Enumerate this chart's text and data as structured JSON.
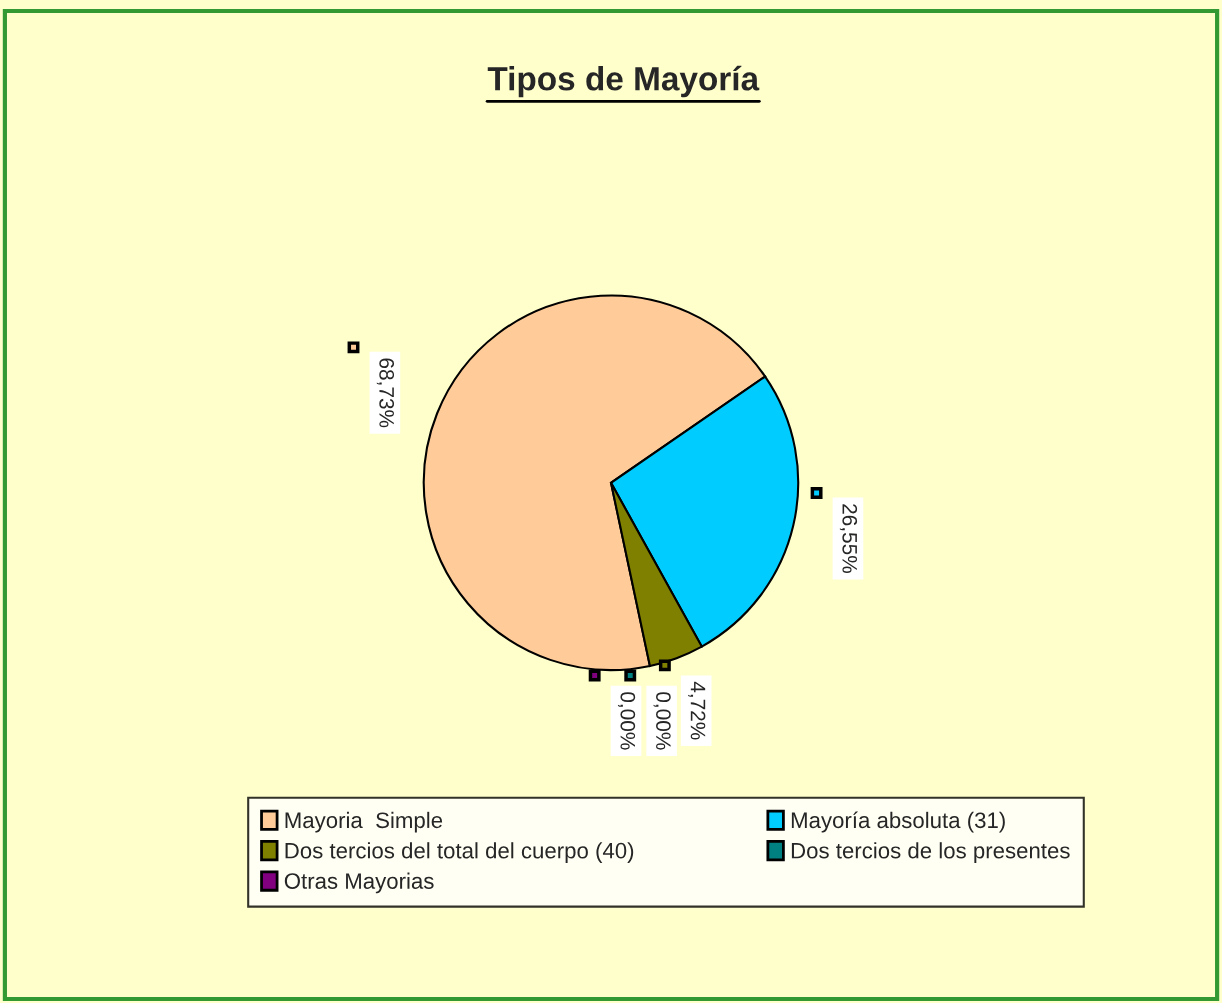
{
  "chart_data": {
    "type": "pie",
    "title": "Tipos de Mayoría",
    "categories": [
      "Mayoria  Simple",
      "Mayoría absoluta (31)",
      "Dos tercios del total del cuerpo (40)",
      "Dos tercios de los presentes",
      "Otras Mayorias"
    ],
    "values": [
      68.73,
      26.55,
      4.72,
      0.0,
      0.0
    ],
    "colors": [
      "#ffcc99",
      "#00ccff",
      "#808000",
      "#008080",
      "#800080"
    ],
    "value_labels": [
      "68,73%",
      "26,55%",
      "4,72%",
      "0,00%",
      "0,00%"
    ],
    "legend": "bottom"
  }
}
